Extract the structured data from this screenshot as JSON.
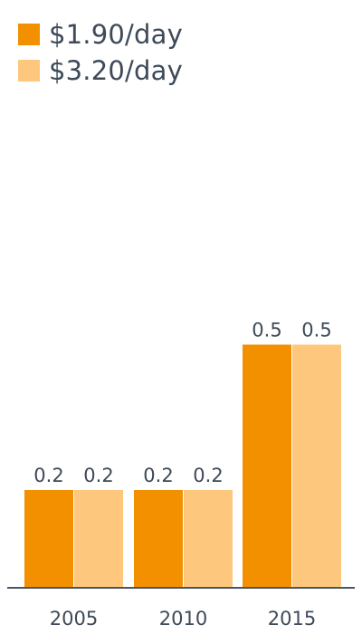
{
  "legend": {
    "items": [
      {
        "label": "$1.90/day",
        "color": "#f39000"
      },
      {
        "label": "$3.20/day",
        "color": "#fdc87e"
      }
    ]
  },
  "chart_data": {
    "type": "bar",
    "categories": [
      "2005",
      "2010",
      "2015"
    ],
    "series": [
      {
        "name": "$1.90/day",
        "values": [
          0.2,
          0.2,
          0.5
        ],
        "color": "#f39000"
      },
      {
        "name": "$3.20/day",
        "values": [
          0.2,
          0.2,
          0.5
        ],
        "color": "#fdc87e"
      }
    ],
    "data_labels": [
      [
        "0.2",
        "0.2",
        "0.5"
      ],
      [
        "0.2",
        "0.2",
        "0.5"
      ]
    ],
    "title": "",
    "xlabel": "",
    "ylabel": "",
    "ylim": [
      0,
      1.0
    ],
    "grid": false,
    "legend_position": "top-left",
    "axis_color": "#4a5665"
  }
}
